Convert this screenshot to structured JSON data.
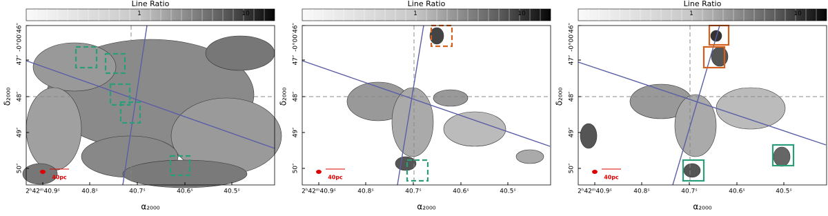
{
  "figure": {
    "panels": [
      {
        "colorbar_label": "Line Ratio",
        "colorbar_ticks": [
          "1",
          "10"
        ],
        "xlabel": "α₂₀₀₀",
        "ylabel": "δ₂₀₀₀",
        "xticks": [
          "2ʰ42ᵐ40.9ˢ",
          "40.8ˢ",
          "40.7ˢ",
          "40.6ˢ",
          "40.5ˢ"
        ],
        "yticks": [
          "-0°00′46″",
          "47″",
          "48″",
          "49″",
          "50″"
        ],
        "scalebar": "40pc"
      },
      {
        "colorbar_label": "Line Ratio",
        "colorbar_ticks": [
          "1",
          "10"
        ],
        "xlabel": "α₂₀₀₀",
        "ylabel": "δ₂₀₀₀",
        "xticks": [
          "2ʰ42ᵐ40.9ˢ",
          "40.8ˢ",
          "40.7ˢ",
          "40.6ˢ",
          "40.5ˢ"
        ],
        "yticks": [
          "-0°00′46″",
          "47″",
          "48″",
          "49″",
          "50″"
        ],
        "scalebar": "40pc"
      },
      {
        "colorbar_label": "Line Ratio",
        "colorbar_ticks": [
          "1",
          "10"
        ],
        "xlabel": "α₂₀₀₀",
        "ylabel": "δ₂₀₀₀",
        "xticks": [
          "2ʰ42ᵐ40.9ˢ",
          "40.8ˢ",
          "40.7ˢ",
          "40.6ˢ",
          "40.5ˢ"
        ],
        "yticks": [
          "-0°00′46″",
          "47″",
          "48″",
          "49″",
          "50″"
        ],
        "scalebar": "40pc"
      }
    ]
  }
}
